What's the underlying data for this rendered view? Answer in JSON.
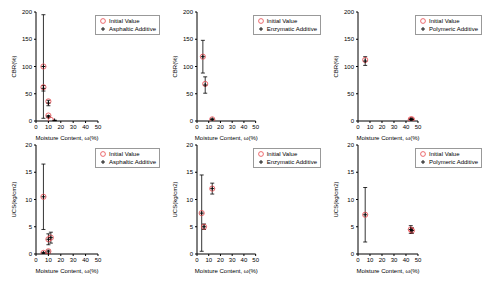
{
  "chart_data": [
    {
      "type": "scatter",
      "xlabel": "Moisture Content, ω(%)",
      "ylabel": "CBR(%)",
      "xlim": [
        0,
        50
      ],
      "xticks": [
        0,
        10,
        20,
        30,
        40,
        50
      ],
      "ylim": [
        0,
        200
      ],
      "yticks": [
        0,
        50,
        100,
        150,
        200
      ],
      "legend": "upper right",
      "series": [
        {
          "name": "Initial Value",
          "color": "#e8474c",
          "marker": "circle",
          "x": [
            6,
            6,
            10,
            10,
            12
          ],
          "values": [
            100,
            62,
            36,
            10,
            2
          ]
        },
        {
          "name": "Asphaltic Additive",
          "color": "#000000",
          "marker": "plus",
          "x": [
            6,
            6,
            10,
            10,
            15
          ],
          "values": [
            100,
            60,
            33,
            8,
            1
          ],
          "errors": [
            95,
            5,
            5,
            2,
            0.5
          ]
        }
      ]
    },
    {
      "type": "scatter",
      "xlabel": "Moisture Content, ω(%)",
      "ylabel": "CBR(%)",
      "xlim": [
        0,
        50
      ],
      "xticks": [
        0,
        10,
        20,
        30,
        40,
        50
      ],
      "ylim": [
        0,
        200
      ],
      "yticks": [
        0,
        50,
        100,
        150,
        200
      ],
      "legend": "upper right",
      "series": [
        {
          "name": "Initial Value",
          "color": "#e8474c",
          "marker": "circle",
          "x": [
            5,
            7,
            13
          ],
          "values": [
            118,
            68,
            3
          ]
        },
        {
          "name": "Enzymatic Additive",
          "color": "#000000",
          "marker": "plus",
          "x": [
            5,
            7,
            13
          ],
          "values": [
            118,
            66,
            3
          ],
          "errors": [
            30,
            15,
            1
          ]
        }
      ]
    },
    {
      "type": "scatter",
      "xlabel": "Moisture Content, ω(%)",
      "ylabel": "CBR(%)",
      "xlim": [
        0,
        50
      ],
      "xticks": [
        0,
        10,
        20,
        30,
        40,
        50
      ],
      "ylim": [
        0,
        200
      ],
      "yticks": [
        0,
        50,
        100,
        150,
        200
      ],
      "legend": "upper right",
      "series": [
        {
          "name": "Initial Value",
          "color": "#e8474c",
          "marker": "circle",
          "x": [
            6,
            44,
            45
          ],
          "values": [
            112,
            3,
            3
          ]
        },
        {
          "name": "Polymeric Additive",
          "color": "#000000",
          "marker": "plus",
          "x": [
            6,
            44,
            45
          ],
          "values": [
            110,
            3,
            3
          ],
          "errors": [
            8,
            1,
            1
          ]
        }
      ]
    },
    {
      "type": "scatter",
      "xlabel": "Moisture Content, ω(%)",
      "ylabel": "UCS(kg/cm2)",
      "xlim": [
        0,
        50
      ],
      "xticks": [
        0,
        10,
        20,
        30,
        40,
        50
      ],
      "ylim": [
        0,
        20
      ],
      "yticks": [
        0,
        5,
        10,
        15,
        20
      ],
      "legend": "upper right",
      "series": [
        {
          "name": "Initial Value",
          "color": "#e8474c",
          "marker": "circle",
          "x": [
            6,
            6,
            10,
            10,
            12
          ],
          "values": [
            10.5,
            0.2,
            0.5,
            2.7,
            3
          ]
        },
        {
          "name": "Asphaltic Additive",
          "color": "#000000",
          "marker": "plus",
          "x": [
            6,
            6,
            10,
            10,
            12
          ],
          "values": [
            10.5,
            0.2,
            0.4,
            2.7,
            3
          ],
          "errors": [
            6,
            0.1,
            0.3,
            1,
            1
          ]
        }
      ]
    },
    {
      "type": "scatter",
      "xlabel": "Moisture Content, ω(%)",
      "ylabel": "UCS(kg/cm2)",
      "xlim": [
        0,
        50
      ],
      "xticks": [
        0,
        10,
        20,
        30,
        40,
        50
      ],
      "ylim": [
        0,
        20
      ],
      "yticks": [
        0,
        5,
        10,
        15,
        20
      ],
      "legend": "upper right",
      "series": [
        {
          "name": "Initial Value",
          "color": "#e8474c",
          "marker": "circle",
          "x": [
            4,
            6,
            13
          ],
          "values": [
            7.5,
            5,
            12
          ]
        },
        {
          "name": "Enzymatic Additive",
          "color": "#000000",
          "marker": "plus",
          "x": [
            4,
            6,
            13
          ],
          "values": [
            7.5,
            5,
            12
          ],
          "errors": [
            7,
            0.5,
            1
          ]
        }
      ]
    },
    {
      "type": "scatter",
      "xlabel": "Moisture Content, ω(%)",
      "ylabel": "UCS(kg/cm2)",
      "xlim": [
        0,
        50
      ],
      "xticks": [
        0,
        10,
        20,
        30,
        40,
        50
      ],
      "ylim": [
        0,
        20
      ],
      "yticks": [
        0,
        5,
        10,
        15,
        20
      ],
      "legend": "upper right",
      "series": [
        {
          "name": "Initial Value",
          "color": "#e8474c",
          "marker": "circle",
          "x": [
            6,
            44,
            45
          ],
          "values": [
            7.2,
            4.5,
            4.3
          ]
        },
        {
          "name": "Polymeric Additive",
          "color": "#000000",
          "marker": "plus",
          "x": [
            6,
            44,
            45
          ],
          "values": [
            7.2,
            4.5,
            4.3
          ],
          "errors": [
            5,
            0.7,
            0.5
          ]
        }
      ]
    }
  ]
}
